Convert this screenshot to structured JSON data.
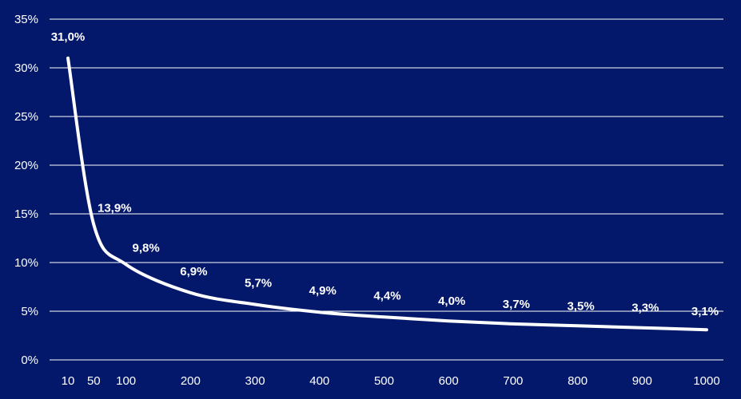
{
  "chart_data": {
    "type": "line",
    "title": "",
    "xlabel": "",
    "ylabel": "",
    "x": [
      10,
      50,
      100,
      200,
      300,
      400,
      500,
      600,
      700,
      800,
      900,
      1000
    ],
    "series": [
      {
        "values": [
          31.0,
          13.9,
          9.8,
          6.9,
          5.7,
          4.9,
          4.4,
          4.0,
          3.7,
          3.5,
          3.3,
          3.1
        ],
        "data_labels": [
          "31,0%",
          "13,9%",
          "9,8%",
          "6,9%",
          "5,7%",
          "4,9%",
          "4,4%",
          "4,0%",
          "3,7%",
          "3,5%",
          "3,3%",
          "3,1%"
        ]
      }
    ],
    "x_tick_labels": [
      "10",
      "50",
      "100",
      "200",
      "300",
      "400",
      "500",
      "600",
      "700",
      "800",
      "900",
      "1000"
    ],
    "y_ticks": [
      0,
      5,
      10,
      15,
      20,
      25,
      30,
      35
    ],
    "y_tick_labels": [
      "0%",
      "5%",
      "10%",
      "15%",
      "20%",
      "25%",
      "30%",
      "35%"
    ],
    "ylim": [
      0,
      35
    ],
    "xlim": [
      10,
      1000
    ],
    "grid": true,
    "legend": "none",
    "line_shape": "smooth",
    "colors": {
      "background": "#03186a",
      "line": "#ffffff",
      "grid": "#ffffff",
      "text": "#ffffff"
    }
  }
}
